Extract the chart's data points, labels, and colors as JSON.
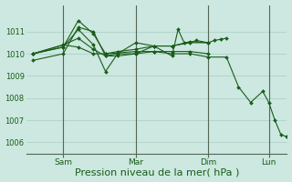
{
  "background_color": "#cce8e0",
  "grid_color": "#aaccc4",
  "line_color": "#1a5c1a",
  "marker_color": "#1a5c1a",
  "xlim": [
    -4,
    168
  ],
  "ylim": [
    1005.5,
    1012.2
  ],
  "y_ticks": [
    1006,
    1007,
    1008,
    1009,
    1010,
    1011
  ],
  "x_tick_positions": [
    20,
    68,
    116,
    156
  ],
  "x_tick_labels": [
    "Sam",
    "Mar",
    "Dim",
    "Lun"
  ],
  "x_vline_positions": [
    20,
    68,
    116,
    156
  ],
  "xlabel": "Pression niveau de la mer( hPa )",
  "xlabel_fontsize": 8,
  "series": [
    {
      "x": [
        0,
        20,
        30,
        40,
        48,
        56,
        68,
        80,
        92,
        104,
        116,
        128,
        136,
        144,
        152,
        156,
        160,
        164,
        168
      ],
      "y": [
        1009.7,
        1010.0,
        1011.2,
        1011.0,
        1009.9,
        1010.0,
        1010.0,
        1010.1,
        1010.0,
        1010.0,
        1009.85,
        1009.85,
        1008.5,
        1007.8,
        1008.3,
        1007.8,
        1007.0,
        1006.35,
        1006.25
      ]
    },
    {
      "x": [
        0,
        20,
        30,
        40,
        48,
        56,
        68,
        80,
        92,
        104,
        116,
        120,
        124,
        128
      ],
      "y": [
        1010.0,
        1010.3,
        1011.5,
        1010.9,
        1010.0,
        1010.1,
        1010.2,
        1010.35,
        1010.35,
        1010.55,
        1010.5,
        1010.6,
        1010.65,
        1010.7
      ]
    },
    {
      "x": [
        0,
        20,
        30,
        40,
        48,
        56,
        68,
        80,
        92,
        96,
        100,
        116
      ],
      "y": [
        1010.0,
        1010.3,
        1011.1,
        1010.4,
        1009.2,
        1010.0,
        1010.5,
        1010.35,
        1009.9,
        1011.1,
        1010.5,
        1010.5
      ]
    },
    {
      "x": [
        0,
        20,
        30,
        40,
        48,
        68,
        80,
        92,
        104,
        116
      ],
      "y": [
        1010.0,
        1010.4,
        1010.3,
        1010.0,
        1010.0,
        1010.1,
        1010.1,
        1010.1,
        1010.1,
        1010.0
      ]
    },
    {
      "x": [
        0,
        20,
        30,
        40,
        48,
        56,
        68,
        80,
        92,
        104,
        108,
        116
      ],
      "y": [
        1010.0,
        1010.4,
        1010.7,
        1010.2,
        1009.9,
        1009.9,
        1010.0,
        1010.35,
        1010.35,
        1010.5,
        1010.6,
        1010.5
      ]
    }
  ]
}
